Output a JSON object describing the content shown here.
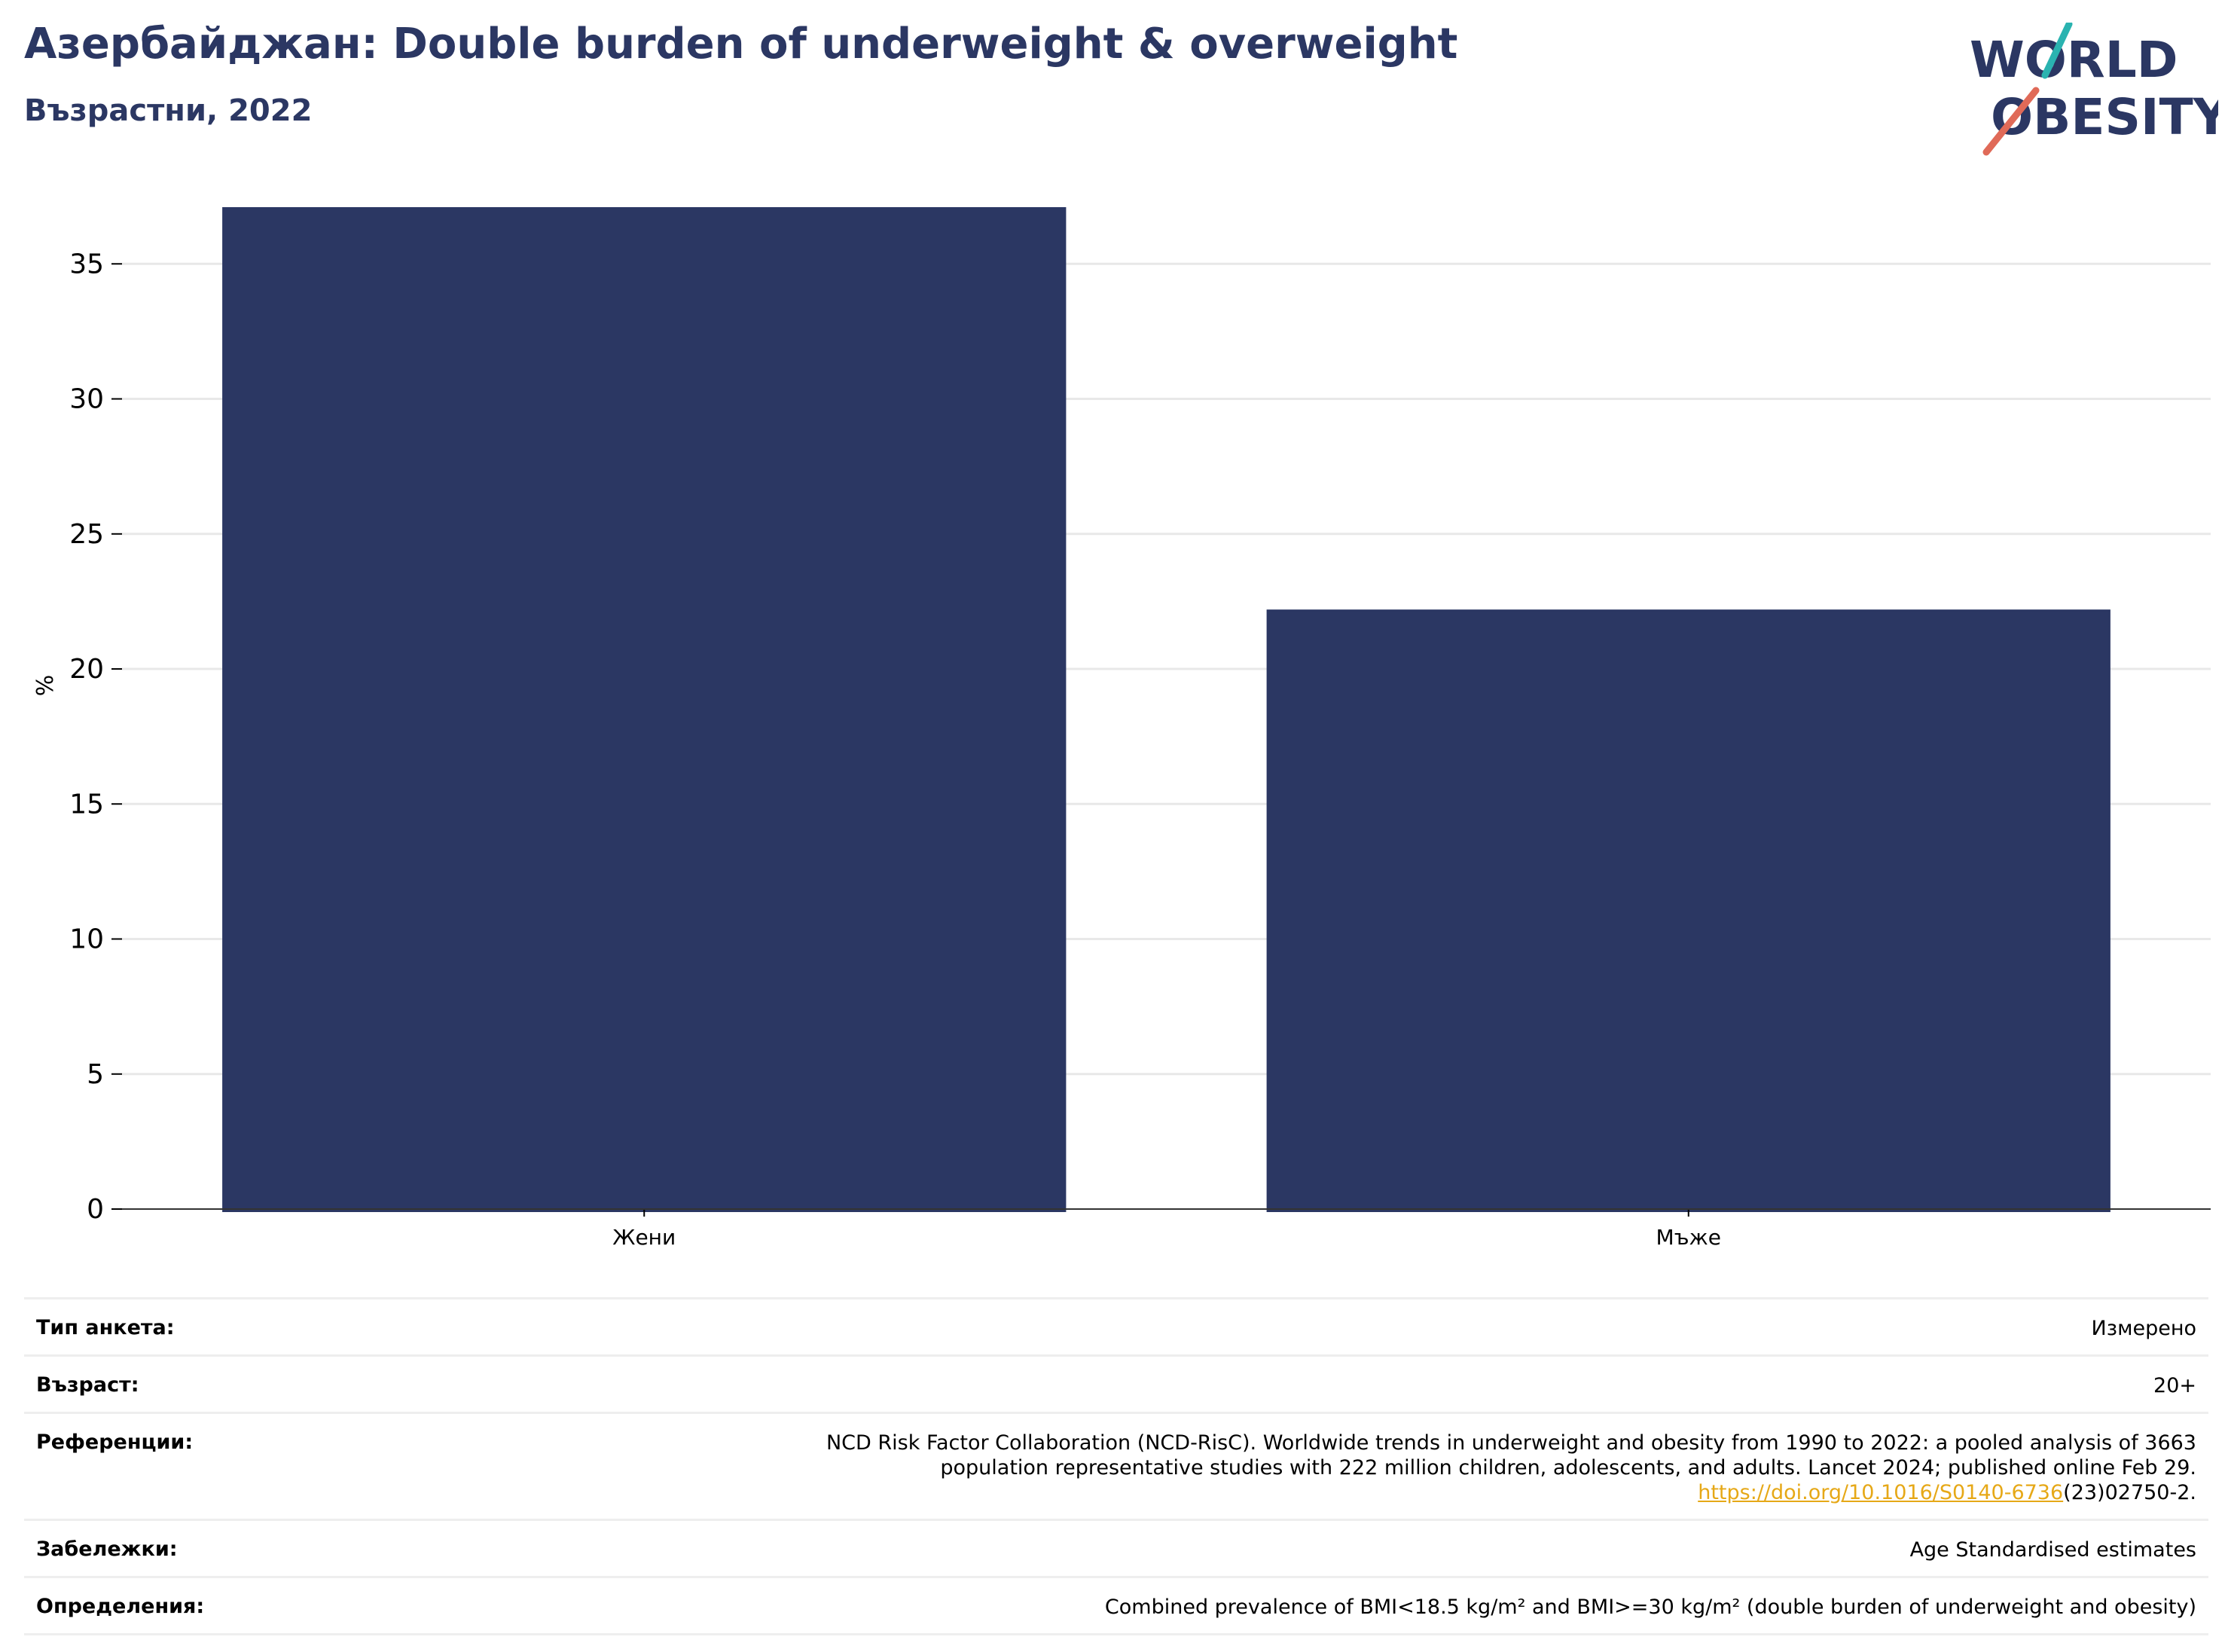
{
  "header": {
    "title": "Азербайджан: Double burden of underweight & overweight",
    "subtitle": "Възрастни, 2022"
  },
  "logo": {
    "line1": "WORLD",
    "line2": "OBESITY",
    "colors": {
      "text": "#2b3763",
      "slash_top": "#2ab3b0",
      "slash_bottom": "#e06a58"
    }
  },
  "chart_data": {
    "type": "bar",
    "categories": [
      "Жени",
      "Мъже"
    ],
    "values": [
      37.1,
      22.2
    ],
    "title": "",
    "xlabel": "",
    "ylabel": "%",
    "ylim": [
      0,
      37.1
    ],
    "yticks": [
      0,
      5,
      10,
      15,
      20,
      25,
      30,
      35
    ],
    "grid": true,
    "legend": "none",
    "bar_color": "#2b3763"
  },
  "meta": {
    "survey_type": {
      "label": "Тип анкета:",
      "value": "Измерено"
    },
    "age": {
      "label": "Възраст:",
      "value": "20+"
    },
    "references": {
      "label": "Референции:",
      "line1": "NCD Risk Factor Collaboration (NCD-RisC). Worldwide trends in underweight and obesity from 1990 to 2022: a pooled analysis of 3663",
      "line2": "population representative studies with 222 million children, adolescents, and adults. Lancet 2024; published online Feb 29.",
      "link": "https://doi.org/10.1016/S0140-6736",
      "link_suffix": "(23)02750-2."
    },
    "notes": {
      "label": "Забележки:",
      "value": "Age Standardised estimates"
    },
    "definitions": {
      "label": "Определения:",
      "value": "Combined prevalence of BMI<18.5 kg/m² and BMI>=30 kg/m² (double burden of underweight and obesity)"
    }
  }
}
